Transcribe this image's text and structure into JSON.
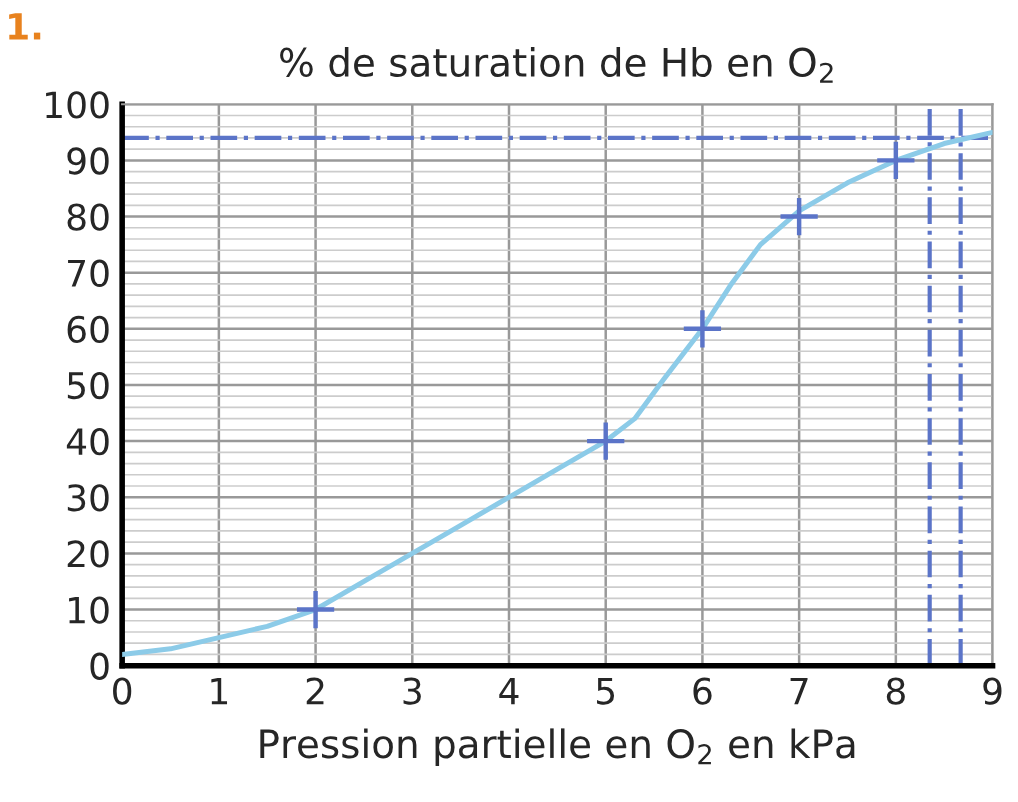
{
  "chart_data": {
    "type": "line",
    "title": "% de saturation de Hb en O$_{2}$",
    "xlabel": "Pression partielle en O$_{2}$ en kPa",
    "annotations": [
      "1."
    ],
    "series": [
      {
        "color": "#8ccbe8",
        "marker": "none",
        "x": [
          0,
          0.5,
          1,
          1.5,
          2,
          2.5,
          3,
          3.5,
          4,
          4.5,
          5,
          5.3,
          5.6,
          6,
          6.3,
          6.6,
          7,
          7.5,
          8,
          8.5,
          9
        ],
        "values": [
          2,
          3,
          5,
          7,
          10,
          15,
          20,
          25,
          30,
          35,
          40,
          44,
          51,
          60,
          68,
          75,
          81,
          86,
          90,
          93,
          95
        ]
      },
      {
        "type": "scatter",
        "color": "#5b74c8",
        "marker": "cross",
        "x": [
          2,
          5,
          6,
          7,
          8
        ],
        "values": [
          10,
          40,
          60,
          80,
          90
        ]
      }
    ],
    "xlim": [
      0,
      9
    ],
    "ylim": [
      0,
      100
    ],
    "xticks": [
      0,
      1,
      2,
      3,
      4,
      5,
      6,
      7,
      8,
      9
    ],
    "yticks": [
      0,
      10,
      20,
      30,
      40,
      50,
      60,
      70,
      80,
      90,
      100
    ],
    "grid": true,
    "ref_lines": [
      {
        "axis": "y",
        "value": 94,
        "color": "#5b74c8",
        "line_style": "dashdot"
      },
      {
        "axis": "x",
        "value": 8.35,
        "color": "#5b74c8",
        "line_style": "dashdot"
      },
      {
        "axis": "x",
        "value": 8.67,
        "color": "#5b74c8",
        "line_style": "dashdot"
      }
    ]
  }
}
